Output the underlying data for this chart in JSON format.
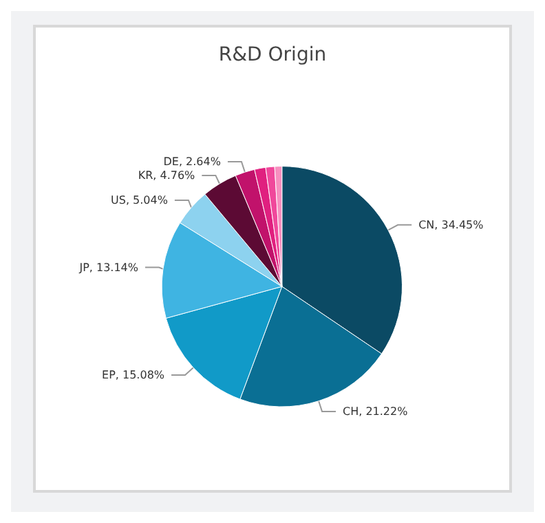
{
  "chart_data": {
    "type": "pie",
    "title": "R&D Origin",
    "categories": [
      "CN",
      "CH",
      "EP",
      "JP",
      "US",
      "KR",
      "DE",
      null,
      null,
      null
    ],
    "values": [
      34.45,
      21.22,
      15.08,
      13.14,
      5.04,
      4.76,
      2.64,
      1.5,
      1.2,
      0.97
    ],
    "colors": [
      "#0b4a64",
      "#0a6f94",
      "#119ac8",
      "#3fb4e2",
      "#8dd2ef",
      "#5c0a34",
      "#c1126b",
      "#e0207f",
      "#f0489b",
      "#f78fbf"
    ],
    "value_labels": [
      "34.45%",
      "21.22%",
      "15.08%",
      "13.14%",
      "5.04%",
      "4.76%",
      "2.64%",
      null,
      null,
      null
    ],
    "legend": false
  }
}
